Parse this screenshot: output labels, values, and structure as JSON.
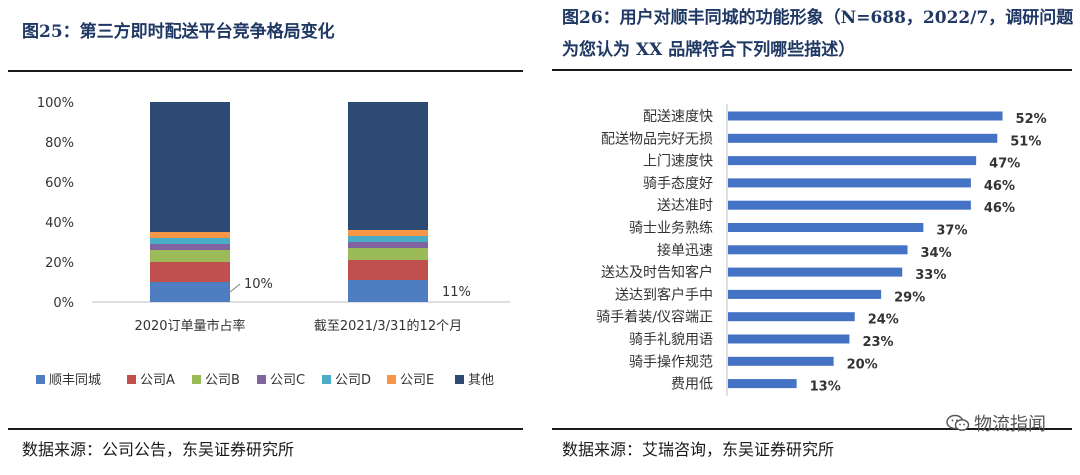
{
  "left": {
    "title": "图25：第三方即时配送平台竞争格局变化",
    "source": "数据来源：公司公告，东吴证券研究所"
  },
  "right": {
    "title": "图26：用户对顺丰同城的功能形象（N=688，2022/7，调研问题为您认为 XX 品牌符合下列哪些描述）",
    "source": "数据来源：艾瑞咨询，东吴证券研究所"
  },
  "watermark": {
    "text": "物流指闻",
    "icon": "wechat-icon"
  },
  "colors": {
    "blue": "#4e7ec1",
    "red": "#c0504d",
    "green": "#9bbb59",
    "purple": "#8064a2",
    "cyan": "#4bacc6",
    "orange": "#f79646",
    "navy": "#2c4a73",
    "hbar": "#4472c4"
  },
  "chart_data": [
    {
      "type": "bar",
      "stacked": true,
      "categories": [
        "2020订单量市占率",
        "截至2021/3/31的12个月"
      ],
      "series": [
        {
          "name": "顺丰同城",
          "values": [
            10,
            11
          ]
        },
        {
          "name": "公司A",
          "values": [
            10,
            10
          ]
        },
        {
          "name": "公司B",
          "values": [
            6,
            6
          ]
        },
        {
          "name": "公司C",
          "values": [
            3,
            3
          ]
        },
        {
          "name": "公司D",
          "values": [
            3,
            3
          ]
        },
        {
          "name": "公司E",
          "values": [
            3,
            3
          ]
        },
        {
          "name": "其他",
          "values": [
            65,
            64
          ]
        }
      ],
      "data_labels": [
        "10%",
        "11%"
      ],
      "yticks": [
        "0%",
        "20%",
        "40%",
        "60%",
        "80%",
        "100%"
      ],
      "ylim": [
        0,
        100
      ],
      "legend": "bottom",
      "grid": false
    },
    {
      "type": "bar",
      "orientation": "horizontal",
      "categories": [
        "配送速度快",
        "配送物品完好无损",
        "上门速度快",
        "骑手态度好",
        "送达准时",
        "骑士业务熟练",
        "接单迅速",
        "送达及时告知客户",
        "送达到客户手中",
        "骑手着装/仪容端正",
        "骑手礼貌用语",
        "骑手操作规范",
        "费用低"
      ],
      "values": [
        52,
        51,
        47,
        46,
        46,
        37,
        34,
        33,
        29,
        24,
        23,
        20,
        13
      ],
      "labels": [
        "52%",
        "51%",
        "47%",
        "46%",
        "46%",
        "37%",
        "34%",
        "33%",
        "29%",
        "24%",
        "23%",
        "20%",
        "13%"
      ],
      "xlim": [
        0,
        60
      ],
      "grid": false
    }
  ]
}
